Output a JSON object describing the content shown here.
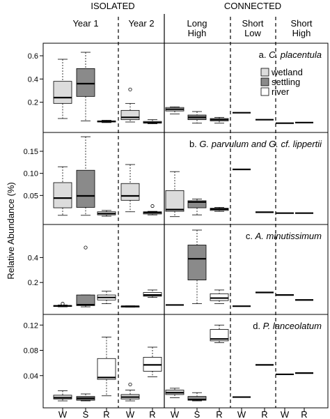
{
  "chart_data": {
    "type": "box",
    "group_headers": [
      "ISOLATED",
      "CONNECTED"
    ],
    "period_labels": [
      {
        "id": "y1",
        "text": [
          "Year 1"
        ]
      },
      {
        "id": "y2",
        "text": [
          "Year 2"
        ]
      },
      {
        "id": "lh",
        "text": [
          "Long",
          "High"
        ]
      },
      {
        "id": "sl",
        "text": [
          "Short",
          "Low"
        ]
      },
      {
        "id": "sh",
        "text": [
          "Short",
          "High"
        ]
      }
    ],
    "ylabel": "Relative Abundance (%)",
    "legend": {
      "position": "top-right of panel a",
      "items": [
        {
          "name": "wetland",
          "color": "#dcdcdc"
        },
        {
          "name": "settling",
          "color": "#8a8a8a"
        },
        {
          "name": "river",
          "color": "#ffffff"
        }
      ]
    },
    "colors": {
      "W": "#dcdcdc",
      "S": "#8a8a8a",
      "R": "#ffffff"
    },
    "x_ticks": [
      {
        "period": "y1",
        "label": "W"
      },
      {
        "period": "y1",
        "label": "S"
      },
      {
        "period": "y1",
        "label": "R"
      },
      {
        "period": "y2",
        "label": "W"
      },
      {
        "period": "y2",
        "label": "R"
      },
      {
        "period": "lh",
        "label": "W"
      },
      {
        "period": "lh",
        "label": "S"
      },
      {
        "period": "lh",
        "label": "R"
      },
      {
        "period": "sl",
        "label": "W"
      },
      {
        "period": "sl",
        "label": "R"
      },
      {
        "period": "sh",
        "label": "W"
      },
      {
        "period": "sh",
        "label": "R"
      }
    ],
    "panels": [
      {
        "title_prefix": "a. ",
        "title_italic": "C. placentula",
        "ylim": [
          0,
          0.66
        ],
        "yticks": [
          0.2,
          0.4,
          0.6
        ],
        "ytick_labels": [
          "0.2",
          "0.4",
          "0.6"
        ],
        "boxes": [
          {
            "period": "y1",
            "type": "W",
            "whislo": 0.06,
            "q1": 0.19,
            "med": 0.24,
            "q3": 0.38,
            "whishi": 0.57
          },
          {
            "period": "y1",
            "type": "S",
            "whislo": 0.04,
            "q1": 0.25,
            "med": 0.36,
            "q3": 0.49,
            "whishi": 0.63
          },
          {
            "period": "y1",
            "type": "R",
            "whislo": 0.025,
            "q1": 0.03,
            "med": 0.035,
            "q3": 0.04,
            "whishi": 0.045
          },
          {
            "period": "y2",
            "type": "W",
            "whislo": 0.03,
            "q1": 0.05,
            "med": 0.07,
            "q3": 0.13,
            "whishi": 0.19,
            "fliers": [
              0.31
            ]
          },
          {
            "period": "y2",
            "type": "R",
            "whislo": 0.015,
            "q1": 0.02,
            "med": 0.025,
            "q3": 0.035,
            "whishi": 0.05
          },
          {
            "period": "lh",
            "type": "W",
            "whislo": 0.1,
            "q1": 0.125,
            "med": 0.14,
            "q3": 0.155,
            "whishi": 0.16
          },
          {
            "period": "lh",
            "type": "S",
            "whislo": 0.02,
            "q1": 0.05,
            "med": 0.07,
            "q3": 0.09,
            "whishi": 0.12
          },
          {
            "period": "lh",
            "type": "R",
            "whislo": 0.02,
            "q1": 0.04,
            "med": 0.05,
            "q3": 0.06,
            "whishi": 0.07
          },
          {
            "period": "sl",
            "type": "W",
            "med": 0.11
          },
          {
            "period": "sl",
            "type": "R",
            "med": 0.05
          },
          {
            "period": "sh",
            "type": "W",
            "med": 0.02
          },
          {
            "period": "sh",
            "type": "R",
            "med": 0.025
          }
        ]
      },
      {
        "title_prefix": "b. ",
        "title_italic": "G. parvulum and G. cf. lippertii",
        "ylim": [
          0,
          0.18
        ],
        "yticks": [
          0.05,
          0.1,
          0.15
        ],
        "ytick_labels": [
          "0.05",
          "0.10",
          "0.15"
        ],
        "boxes": [
          {
            "period": "y1",
            "type": "W",
            "whislo": 0.005,
            "q1": 0.022,
            "med": 0.044,
            "q3": 0.079,
            "whishi": 0.115
          },
          {
            "period": "y1",
            "type": "S",
            "whislo": 0.005,
            "q1": 0.023,
            "med": 0.049,
            "q3": 0.107,
            "whishi": 0.183
          },
          {
            "period": "y1",
            "type": "R",
            "whislo": 0.003,
            "q1": 0.006,
            "med": 0.009,
            "q3": 0.013,
            "whishi": 0.016
          },
          {
            "period": "y2",
            "type": "W",
            "whislo": 0.013,
            "q1": 0.039,
            "med": 0.049,
            "q3": 0.077,
            "whishi": 0.12
          },
          {
            "period": "y2",
            "type": "R",
            "whislo": 0.006,
            "q1": 0.008,
            "med": 0.011,
            "q3": 0.013,
            "whishi": 0.014,
            "fliers": [
              0.026
            ]
          },
          {
            "period": "lh",
            "type": "W",
            "whislo": 0.002,
            "q1": 0.014,
            "med": 0.018,
            "q3": 0.061,
            "whishi": 0.104
          },
          {
            "period": "lh",
            "type": "S",
            "whislo": 0.006,
            "q1": 0.022,
            "med": 0.035,
            "q3": 0.038,
            "whishi": 0.042
          },
          {
            "period": "lh",
            "type": "R",
            "whislo": 0.014,
            "q1": 0.016,
            "med": 0.019,
            "q3": 0.021,
            "whishi": 0.023
          },
          {
            "period": "sl",
            "type": "W",
            "med": 0.109
          },
          {
            "period": "sl",
            "type": "R",
            "med": 0.012
          },
          {
            "period": "sh",
            "type": "W",
            "med": 0.01
          },
          {
            "period": "sh",
            "type": "R",
            "med": 0.01
          }
        ]
      },
      {
        "title_prefix": "c. ",
        "title_italic": "A. minutissimum",
        "ylim": [
          0,
          0.62
        ],
        "yticks": [
          0.2,
          0.4
        ],
        "ytick_labels": [
          "0.2",
          "0.4"
        ],
        "boxes": [
          {
            "period": "y1",
            "type": "W",
            "whislo": 0.005,
            "q1": 0.008,
            "med": 0.012,
            "q3": 0.016,
            "whishi": 0.02,
            "fliers": [
              0.03
            ]
          },
          {
            "period": "y1",
            "type": "S",
            "whislo": 0.005,
            "q1": 0.015,
            "med": 0.022,
            "q3": 0.1,
            "whishi": 0.1,
            "fliers": [
              0.48
            ]
          },
          {
            "period": "y1",
            "type": "R",
            "whislo": 0.03,
            "q1": 0.06,
            "med": 0.08,
            "q3": 0.1,
            "whishi": 0.13
          },
          {
            "period": "y2",
            "type": "W",
            "whislo": 0.002,
            "q1": 0.006,
            "med": 0.009,
            "q3": 0.011,
            "whishi": 0.013
          },
          {
            "period": "y2",
            "type": "R",
            "whislo": 0.08,
            "q1": 0.09,
            "med": 0.1,
            "q3": 0.12,
            "whishi": 0.14
          },
          {
            "period": "lh",
            "type": "W",
            "med": 0.02
          },
          {
            "period": "lh",
            "type": "S",
            "whislo": 0.03,
            "q1": 0.22,
            "med": 0.39,
            "q3": 0.5,
            "whishi": 0.62
          },
          {
            "period": "lh",
            "type": "R",
            "whislo": 0.03,
            "q1": 0.055,
            "med": 0.075,
            "q3": 0.11,
            "whishi": 0.14
          },
          {
            "period": "sl",
            "type": "W",
            "med": 0.01
          },
          {
            "period": "sl",
            "type": "R",
            "med": 0.12
          },
          {
            "period": "sh",
            "type": "W",
            "med": 0.1
          },
          {
            "period": "sh",
            "type": "R",
            "med": 0.06
          }
        ]
      },
      {
        "title_prefix": "d. ",
        "title_italic": "P. lanceolatum",
        "ylim": [
          0,
          0.128
        ],
        "yticks": [
          0.04,
          0.08,
          0.12
        ],
        "ytick_labels": [
          "0.04",
          "0.08",
          "0.12"
        ],
        "boxes": [
          {
            "period": "y1",
            "type": "W",
            "whislo": 0.0,
            "q1": 0.003,
            "med": 0.005,
            "q3": 0.009,
            "whishi": 0.016
          },
          {
            "period": "y1",
            "type": "S",
            "whislo": 0.0,
            "q1": 0.001,
            "med": 0.004,
            "q3": 0.007,
            "whishi": 0.011
          },
          {
            "period": "y1",
            "type": "R",
            "whislo": 0.008,
            "q1": 0.034,
            "med": 0.037,
            "q3": 0.067,
            "whishi": 0.101
          },
          {
            "period": "y2",
            "type": "W",
            "whislo": 0.0,
            "q1": 0.003,
            "med": 0.006,
            "q3": 0.01,
            "whishi": 0.017,
            "fliers": [
              0.026
            ]
          },
          {
            "period": "y2",
            "type": "R",
            "whislo": 0.038,
            "q1": 0.047,
            "med": 0.057,
            "q3": 0.069,
            "whishi": 0.085
          },
          {
            "period": "lh",
            "type": "W",
            "whislo": 0.005,
            "q1": 0.01,
            "med": 0.013,
            "q3": 0.017,
            "whishi": 0.02
          },
          {
            "period": "lh",
            "type": "S",
            "whislo": 0.0,
            "q1": 0.001,
            "med": 0.002,
            "q3": 0.007,
            "whishi": 0.013
          },
          {
            "period": "lh",
            "type": "R",
            "whislo": 0.092,
            "q1": 0.095,
            "med": 0.098,
            "q3": 0.113,
            "whishi": 0.12
          },
          {
            "period": "sl",
            "type": "W",
            "med": 0.006
          },
          {
            "period": "sl",
            "type": "R",
            "med": 0.057
          },
          {
            "period": "sh",
            "type": "W",
            "med": 0.042
          },
          {
            "period": "sh",
            "type": "R",
            "med": 0.044
          }
        ]
      }
    ]
  }
}
